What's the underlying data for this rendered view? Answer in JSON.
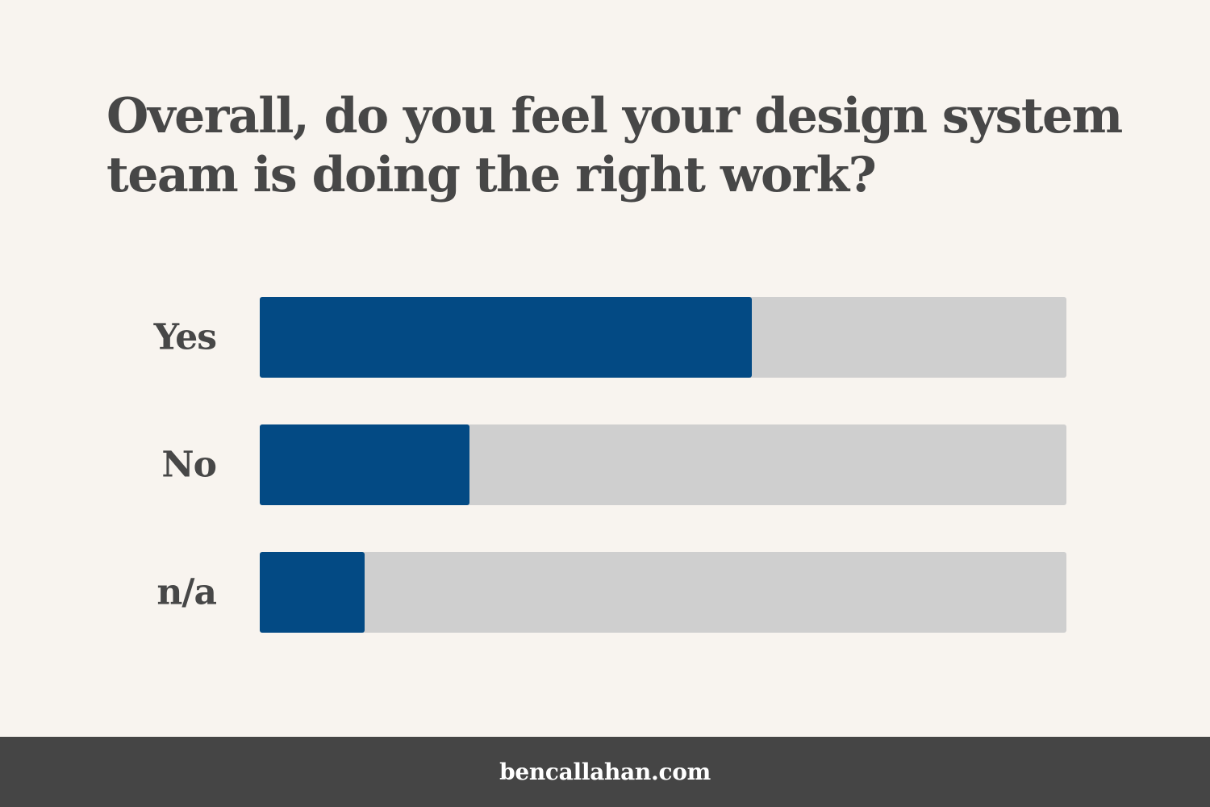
{
  "chart_data": {
    "type": "bar",
    "orientation": "horizontal",
    "title": "Overall, do you feel your design system team is doing the right work?",
    "categories": [
      "Yes",
      "No",
      "n/a"
    ],
    "values": [
      61,
      26,
      13
    ],
    "xlim": [
      0,
      100
    ],
    "grid": false,
    "colors": {
      "bar": "#034a84",
      "track": "#cfcfcf",
      "text": "#474747",
      "background": "#f8f4ef"
    }
  },
  "footer": {
    "site": "bencallahan.com",
    "background": "#454545"
  }
}
